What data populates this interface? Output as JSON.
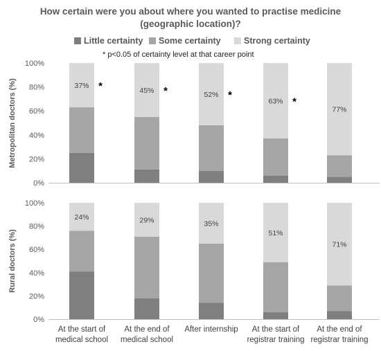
{
  "title_line1": "How certain were you about where you wanted to practise medicine",
  "title_line2": "(geographic location)?",
  "chart_data": {
    "type": "bar",
    "stacked": true,
    "legend": {
      "position": "top",
      "entries": [
        {
          "name": "Little certainty",
          "color": "#7f7f7f"
        },
        {
          "name": "Some certainty",
          "color": "#a6a6a6"
        },
        {
          "name": "Strong certainty",
          "color": "#d9d9d9"
        }
      ]
    },
    "note": "* p<0.05 of certainty level at that career point",
    "categories": [
      [
        "At the start of",
        "medical school"
      ],
      [
        "At the end of",
        "medical school"
      ],
      [
        "After internship"
      ],
      [
        "At the start of",
        "registrar training"
      ],
      [
        "At the end of",
        "registrar training"
      ]
    ],
    "panels": [
      {
        "ylabel": "Metropolitan doctors (%)",
        "ylim": [
          0,
          100
        ],
        "yticks": [
          "0%",
          "20%",
          "40%",
          "60%",
          "80%",
          "100%"
        ],
        "series": [
          {
            "name": "Little certainty",
            "values": [
              25,
              11,
              10,
              6,
              5
            ]
          },
          {
            "name": "Some certainty",
            "values": [
              38,
              44,
              38,
              31,
              18
            ]
          },
          {
            "name": "Strong certainty",
            "values": [
              37,
              45,
              52,
              63,
              77
            ]
          }
        ],
        "labels": [
          "37%",
          "45%",
          "52%",
          "63%",
          "77%"
        ],
        "significant": [
          true,
          true,
          true,
          true,
          false
        ],
        "asterisk": "*"
      },
      {
        "ylabel": "Rural doctors (%)",
        "ylim": [
          0,
          100
        ],
        "yticks": [
          "0%",
          "20%",
          "40%",
          "60%",
          "80%",
          "100%"
        ],
        "series": [
          {
            "name": "Little certainty",
            "values": [
              41,
              18,
              14,
              6,
              7
            ]
          },
          {
            "name": "Some certainty",
            "values": [
              35,
              53,
              51,
              43,
              22
            ]
          },
          {
            "name": "Strong certainty",
            "values": [
              24,
              29,
              35,
              51,
              71
            ]
          }
        ],
        "labels": [
          "24%",
          "29%",
          "35%",
          "51%",
          "71%"
        ],
        "significant": [
          false,
          false,
          false,
          false,
          false
        ],
        "asterisk": "*"
      }
    ]
  }
}
